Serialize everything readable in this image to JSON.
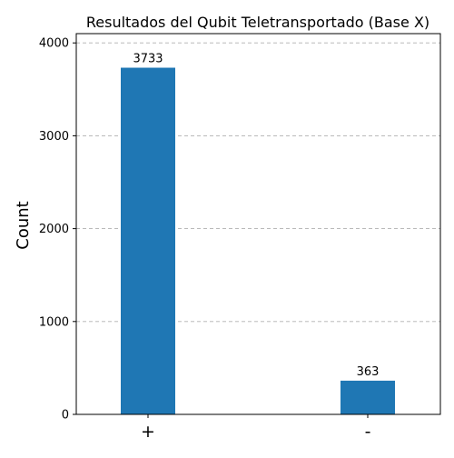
{
  "chart_data": {
    "type": "bar",
    "title": "Resultados del Qubit Teletransportado (Base X)",
    "xlabel": "",
    "ylabel": "Count",
    "categories": [
      "+",
      "-"
    ],
    "values": [
      3733,
      363
    ],
    "data_labels": [
      "3733",
      "363"
    ],
    "yticks": [
      0,
      1000,
      2000,
      3000,
      4000
    ],
    "ylim": [
      0,
      4100
    ],
    "grid": "horizontal dashed",
    "legend": "none",
    "bar_color": "#1f77b4",
    "grid_color": "#b0b0b0"
  }
}
